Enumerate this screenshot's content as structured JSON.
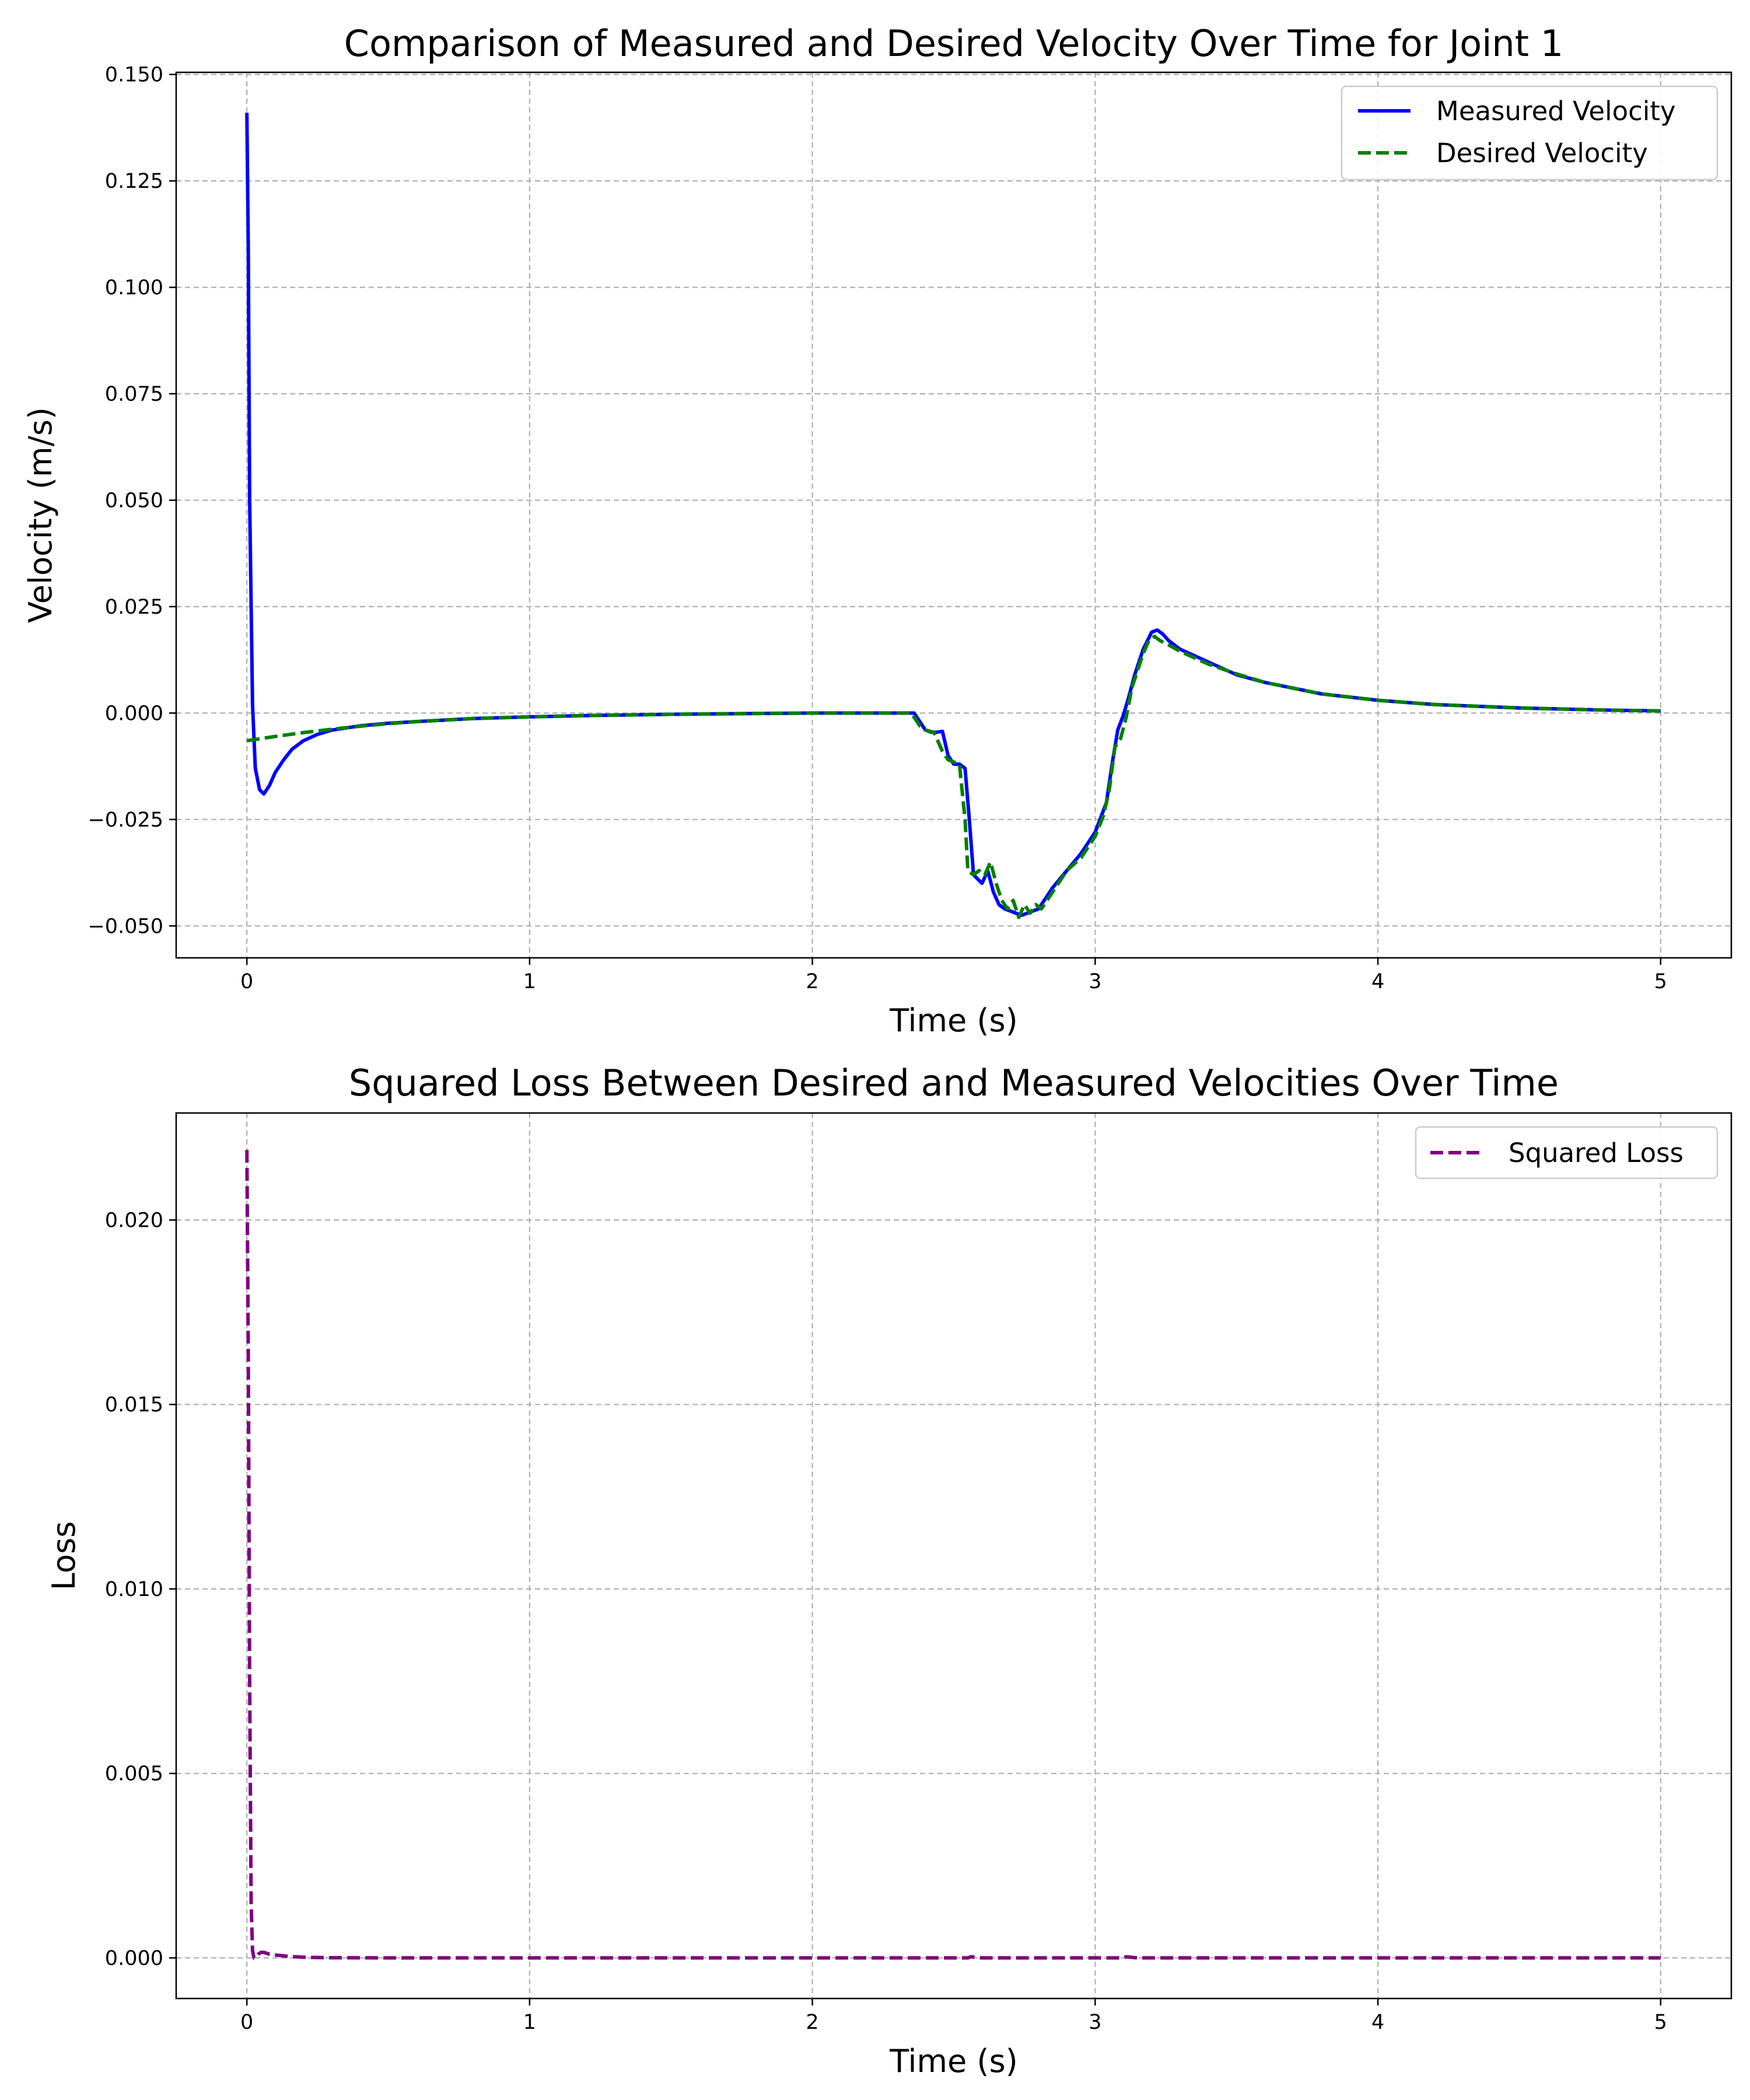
{
  "chart_data": [
    {
      "type": "line",
      "title": "Comparison of Measured and Desired Velocity Over Time for Joint 1",
      "xlabel": "Time (s)",
      "ylabel": "Velocity (m/s)",
      "xlim": [
        -0.25,
        5.25
      ],
      "ylim": [
        -0.0575,
        0.1505
      ],
      "xticks": [
        0,
        1,
        2,
        3,
        4,
        5
      ],
      "xtick_labels": [
        "0",
        "1",
        "2",
        "3",
        "4",
        "5"
      ],
      "yticks": [
        -0.05,
        -0.025,
        0.0,
        0.025,
        0.05,
        0.075,
        0.1,
        0.125,
        0.15
      ],
      "ytick_labels": [
        "−0.050",
        "−0.025",
        "0.000",
        "0.025",
        "0.050",
        "0.075",
        "0.100",
        "0.125",
        "0.150"
      ],
      "grid": true,
      "legend_position": "top-right",
      "series": [
        {
          "name": "Measured Velocity",
          "color": "#0000ff",
          "style": "solid",
          "x": [
            0.0,
            0.005,
            0.01,
            0.02,
            0.03,
            0.045,
            0.06,
            0.08,
            0.1,
            0.13,
            0.16,
            0.2,
            0.25,
            0.3,
            0.4,
            0.5,
            0.6,
            0.8,
            1.0,
            1.2,
            1.5,
            1.8,
            2.0,
            2.2,
            2.36,
            2.38,
            2.4,
            2.42,
            2.44,
            2.46,
            2.48,
            2.5,
            2.52,
            2.54,
            2.555,
            2.57,
            2.6,
            2.62,
            2.64,
            2.66,
            2.68,
            2.7,
            2.72,
            2.74,
            2.76,
            2.78,
            2.8,
            2.82,
            2.85,
            2.9,
            2.95,
            3.0,
            3.04,
            3.06,
            3.08,
            3.1,
            3.12,
            3.14,
            3.17,
            3.2,
            3.22,
            3.24,
            3.26,
            3.3,
            3.4,
            3.5,
            3.6,
            3.8,
            4.0,
            4.2,
            4.5,
            4.8,
            5.0
          ],
          "y": [
            0.141,
            0.11,
            0.05,
            0.002,
            -0.013,
            -0.018,
            -0.019,
            -0.017,
            -0.014,
            -0.011,
            -0.0085,
            -0.0065,
            -0.005,
            -0.004,
            -0.003,
            -0.0024,
            -0.002,
            -0.0013,
            -0.0009,
            -0.0006,
            -0.0003,
            -0.0001,
            0.0,
            0.0,
            0.0,
            -0.002,
            -0.004,
            -0.0045,
            -0.0045,
            -0.0043,
            -0.01,
            -0.012,
            -0.012,
            -0.013,
            -0.025,
            -0.038,
            -0.04,
            -0.037,
            -0.042,
            -0.045,
            -0.046,
            -0.0465,
            -0.047,
            -0.0475,
            -0.047,
            -0.0465,
            -0.046,
            -0.044,
            -0.041,
            -0.037,
            -0.033,
            -0.028,
            -0.021,
            -0.012,
            -0.004,
            -0.0005,
            0.004,
            0.009,
            0.015,
            0.019,
            0.0195,
            0.0185,
            0.017,
            0.015,
            0.012,
            0.009,
            0.0072,
            0.0045,
            0.003,
            0.002,
            0.0012,
            0.0007,
            0.0005
          ]
        },
        {
          "name": "Desired Velocity",
          "color": "#008000",
          "style": "dashed",
          "x": [
            0.0,
            0.1,
            0.2,
            0.3,
            0.4,
            0.5,
            0.6,
            0.8,
            1.0,
            1.2,
            1.5,
            1.8,
            2.0,
            2.2,
            2.35,
            2.38,
            2.4,
            2.43,
            2.46,
            2.48,
            2.5,
            2.52,
            2.54,
            2.55,
            2.57,
            2.59,
            2.61,
            2.63,
            2.65,
            2.67,
            2.69,
            2.71,
            2.73,
            2.75,
            2.77,
            2.79,
            2.81,
            2.83,
            2.86,
            2.9,
            2.95,
            3.0,
            3.03,
            3.05,
            3.07,
            3.09,
            3.11,
            3.13,
            3.15,
            3.17,
            3.19,
            3.21,
            3.23,
            3.26,
            3.3,
            3.4,
            3.5,
            3.6,
            3.8,
            4.0,
            4.2,
            4.5,
            4.8,
            5.0
          ],
          "y": [
            -0.0065,
            -0.0055,
            -0.0046,
            -0.0038,
            -0.0031,
            -0.0025,
            -0.002,
            -0.0013,
            -0.0009,
            -0.0006,
            -0.0003,
            -0.0001,
            0.0,
            0.0,
            0.0,
            -0.003,
            -0.004,
            -0.0045,
            -0.009,
            -0.011,
            -0.0115,
            -0.012,
            -0.025,
            -0.037,
            -0.038,
            -0.037,
            -0.038,
            -0.035,
            -0.04,
            -0.044,
            -0.046,
            -0.044,
            -0.048,
            -0.045,
            -0.047,
            -0.045,
            -0.046,
            -0.044,
            -0.041,
            -0.037,
            -0.034,
            -0.029,
            -0.024,
            -0.018,
            -0.008,
            -0.006,
            -0.001,
            0.006,
            0.01,
            0.014,
            0.017,
            0.018,
            0.017,
            0.016,
            0.0145,
            0.0115,
            0.0092,
            0.0072,
            0.0045,
            0.003,
            0.002,
            0.0012,
            0.0007,
            0.0005
          ]
        }
      ]
    },
    {
      "type": "line",
      "title": "Squared Loss Between Desired and Measured Velocities Over Time",
      "xlabel": "Time (s)",
      "ylabel": "Loss",
      "xlim": [
        -0.25,
        5.25
      ],
      "ylim": [
        -0.0011,
        0.0229
      ],
      "xticks": [
        0,
        1,
        2,
        3,
        4,
        5
      ],
      "xtick_labels": [
        "0",
        "1",
        "2",
        "3",
        "4",
        "5"
      ],
      "yticks": [
        0.0,
        0.005,
        0.01,
        0.015,
        0.02
      ],
      "ytick_labels": [
        "0.000",
        "0.005",
        "0.010",
        "0.015",
        "0.020"
      ],
      "grid": true,
      "legend_position": "top-right",
      "series": [
        {
          "name": "Squared Loss",
          "color": "#800080",
          "style": "dashed",
          "x": [
            0.0,
            0.005,
            0.01,
            0.015,
            0.02,
            0.025,
            0.03,
            0.04,
            0.05,
            0.06,
            0.08,
            0.1,
            0.15,
            0.2,
            0.3,
            0.5,
            1.0,
            2.0,
            2.5,
            2.55,
            2.56,
            2.6,
            3.0,
            3.1,
            3.11,
            3.15,
            4.0,
            5.0
          ],
          "y": [
            0.0219,
            0.0165,
            0.0075,
            0.0015,
            0.0002,
            0.0,
            0.0,
            0.0001,
            0.00015,
            0.00015,
            0.0001,
            8e-05,
            4e-05,
            2e-05,
            5e-06,
            0.0,
            0.0,
            0.0,
            0.0,
            0.0,
            3e-05,
            0.0,
            0.0,
            0.0,
            3e-05,
            0.0,
            0.0,
            0.0
          ]
        }
      ]
    }
  ]
}
